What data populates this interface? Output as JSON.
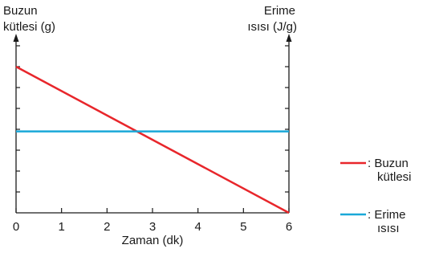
{
  "chart_data": {
    "type": "line",
    "left_axis_label": [
      "Buzun",
      "kütlesi (g)"
    ],
    "right_axis_label": [
      "Erime",
      "ısısı (J/g)"
    ],
    "xlabel": "Zaman (dk)",
    "x_ticks": [
      "0",
      "1",
      "2",
      "3",
      "4",
      "5",
      "6"
    ],
    "xlim": [
      0,
      6
    ],
    "ylim": [
      0,
      7
    ],
    "grid": false,
    "legend_position": "right",
    "series": [
      {
        "name": "Buzun kütlesi",
        "legend_label": [
          ": Buzun",
          "kütlesi"
        ],
        "color": "#e8262b",
        "x": [
          0,
          6
        ],
        "y": [
          7,
          0
        ]
      },
      {
        "name": "Erime ısısı",
        "legend_label": [
          ": Erime",
          "ısısı"
        ],
        "color": "#1aa8d8",
        "x": [
          0,
          6
        ],
        "y": [
          3.9,
          3.9
        ]
      }
    ]
  }
}
